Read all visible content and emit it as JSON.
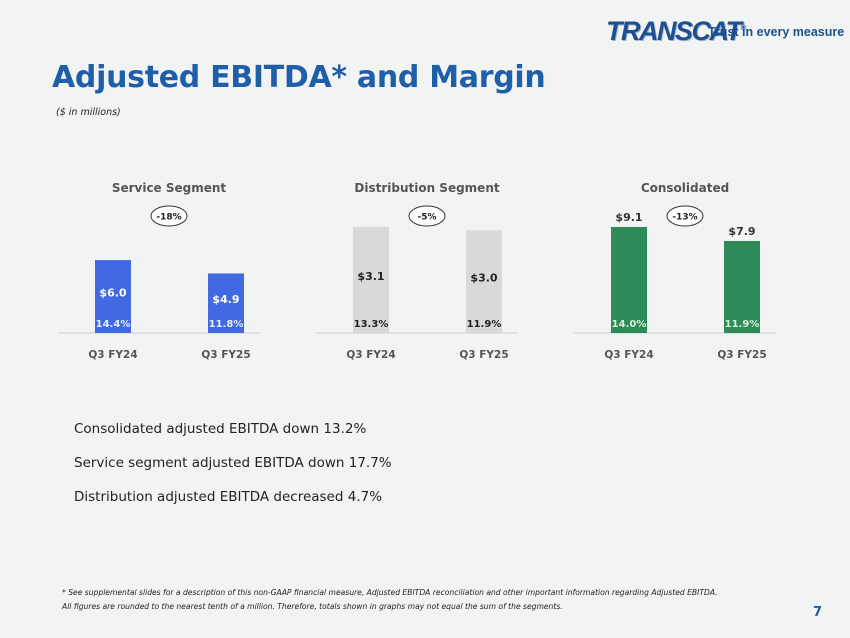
{
  "header": {
    "logo_text": "TRANSCAT",
    "logo_mark": "®",
    "tagline": "Trust in every measure",
    "title": "Adjusted EBITDA* and Margin",
    "subtitle": "($ in millions)"
  },
  "colors": {
    "service": "#4169e1",
    "distribution": "#d9d9d9",
    "consolidated": "#2e8b57",
    "title": "#1f5ea8"
  },
  "chart_data": [
    {
      "type": "bar",
      "title": "Service Segment",
      "categories": [
        "Q3 FY24",
        "Q3 FY25"
      ],
      "values": [
        6.0,
        4.9
      ],
      "value_labels": [
        "$6.0",
        "$4.9"
      ],
      "margin_labels": [
        "14.4%",
        "11.8%"
      ],
      "change_label": "-18%",
      "value_label_position": "inside",
      "bar_color": "#4169e1",
      "value_text_color": "#ffffff",
      "margin_text_color": "#e6ecff",
      "ylim": [
        0,
        9.3
      ]
    },
    {
      "type": "bar",
      "title": "Distribution Segment",
      "categories": [
        "Q3 FY24",
        "Q3 FY25"
      ],
      "values": [
        3.1,
        3.0
      ],
      "value_labels": [
        "$3.1",
        "$3.0"
      ],
      "margin_labels": [
        "13.3%",
        "11.9%"
      ],
      "change_label": "-5%",
      "value_label_position": "inside",
      "bar_color": "#d9d9d9",
      "value_text_color": "#222222",
      "margin_text_color": "#222222",
      "ylim": [
        0,
        3.3
      ]
    },
    {
      "type": "bar",
      "title": "Consolidated",
      "categories": [
        "Q3 FY24",
        "Q3 FY25"
      ],
      "values": [
        9.1,
        7.9
      ],
      "value_labels": [
        "$9.1",
        "$7.9"
      ],
      "margin_labels": [
        "14.0%",
        "11.9%"
      ],
      "change_label": "-13%",
      "value_label_position": "above",
      "bar_color": "#2e8b57",
      "value_text_color": "#333333",
      "margin_text_color": "#d8f0e0",
      "ylim": [
        0,
        9.7
      ]
    }
  ],
  "bullets": [
    "Consolidated adjusted EBITDA down 13.2%",
    "Service segment adjusted EBITDA down 17.7%",
    "Distribution adjusted EBITDA decreased 4.7%"
  ],
  "footnote": {
    "line1": "* See supplemental slides for a description of this non-GAAP financial measure, Adjusted EBITDA reconciliation and other important information regarding Adjusted EBITDA.",
    "line2": "All figures are rounded to the nearest tenth of a million. Therefore, totals shown in graphs may not equal the sum of the segments."
  },
  "page_number": "7"
}
